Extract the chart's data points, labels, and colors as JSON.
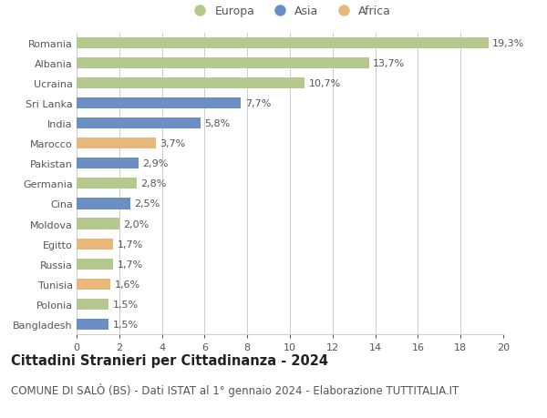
{
  "countries": [
    "Romania",
    "Albania",
    "Ucraina",
    "Sri Lanka",
    "India",
    "Marocco",
    "Pakistan",
    "Germania",
    "Cina",
    "Moldova",
    "Egitto",
    "Russia",
    "Tunisia",
    "Polonia",
    "Bangladesh"
  ],
  "values": [
    19.3,
    13.7,
    10.7,
    7.7,
    5.8,
    3.7,
    2.9,
    2.8,
    2.5,
    2.0,
    1.7,
    1.7,
    1.6,
    1.5,
    1.5
  ],
  "labels": [
    "19,3%",
    "13,7%",
    "10,7%",
    "7,7%",
    "5,8%",
    "3,7%",
    "2,9%",
    "2,8%",
    "2,5%",
    "2,0%",
    "1,7%",
    "1,7%",
    "1,6%",
    "1,5%",
    "1,5%"
  ],
  "continents": [
    "Europa",
    "Europa",
    "Europa",
    "Asia",
    "Asia",
    "Africa",
    "Asia",
    "Europa",
    "Asia",
    "Europa",
    "Africa",
    "Europa",
    "Africa",
    "Europa",
    "Asia"
  ],
  "colors": {
    "Europa": "#b5c98e",
    "Asia": "#6b8fc5",
    "Africa": "#e8b87a"
  },
  "title": "Cittadini Stranieri per Cittadinanza - 2024",
  "subtitle": "COMUNE DI SALÒ (BS) - Dati ISTAT al 1° gennaio 2024 - Elaborazione TUTTITALIA.IT",
  "xlim": [
    0,
    20
  ],
  "xticks": [
    0,
    2,
    4,
    6,
    8,
    10,
    12,
    14,
    16,
    18,
    20
  ],
  "background_color": "#ffffff",
  "grid_color": "#cccccc",
  "bar_height": 0.55,
  "title_fontsize": 10.5,
  "subtitle_fontsize": 8.5,
  "label_fontsize": 8,
  "tick_fontsize": 8,
  "legend_fontsize": 9
}
